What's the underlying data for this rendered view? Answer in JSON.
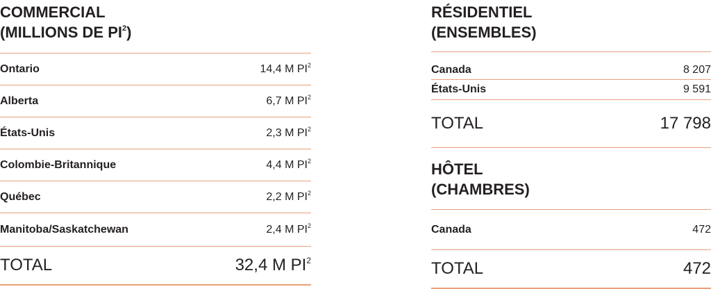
{
  "commercial": {
    "title_line1": "COMMERCIAL",
    "title_line2_prefix": "(MILLIONS DE PI",
    "title_line2_sup": "2",
    "title_line2_suffix": ")",
    "unit": "M PI",
    "unit_sup": "2",
    "rows": [
      {
        "label": "Ontario",
        "value": "14,4"
      },
      {
        "label": "Alberta",
        "value": "6,7"
      },
      {
        "label": "États-Unis",
        "value": "2,3"
      },
      {
        "label": "Colombie-Britannique",
        "value": "4,4"
      },
      {
        "label": "Québec",
        "value": "2,2"
      },
      {
        "label": "Manitoba/Saskatchewan",
        "value": "2,4"
      }
    ],
    "total_label": "TOTAL",
    "total_value": "32,4"
  },
  "residentiel": {
    "title_line1": "RÉSIDENTIEL",
    "title_line2": "(ENSEMBLES)",
    "rows": [
      {
        "label": "Canada",
        "value": "8 207"
      },
      {
        "label": "États-Unis",
        "value": "9 591"
      }
    ],
    "total_label": "TOTAL",
    "total_value": "17 798"
  },
  "hotel": {
    "title_line1": "HÔTEL",
    "title_line2": "(CHAMBRES)",
    "rows": [
      {
        "label": "Canada",
        "value": "472"
      }
    ],
    "total_label": "TOTAL",
    "total_value": "472"
  }
}
